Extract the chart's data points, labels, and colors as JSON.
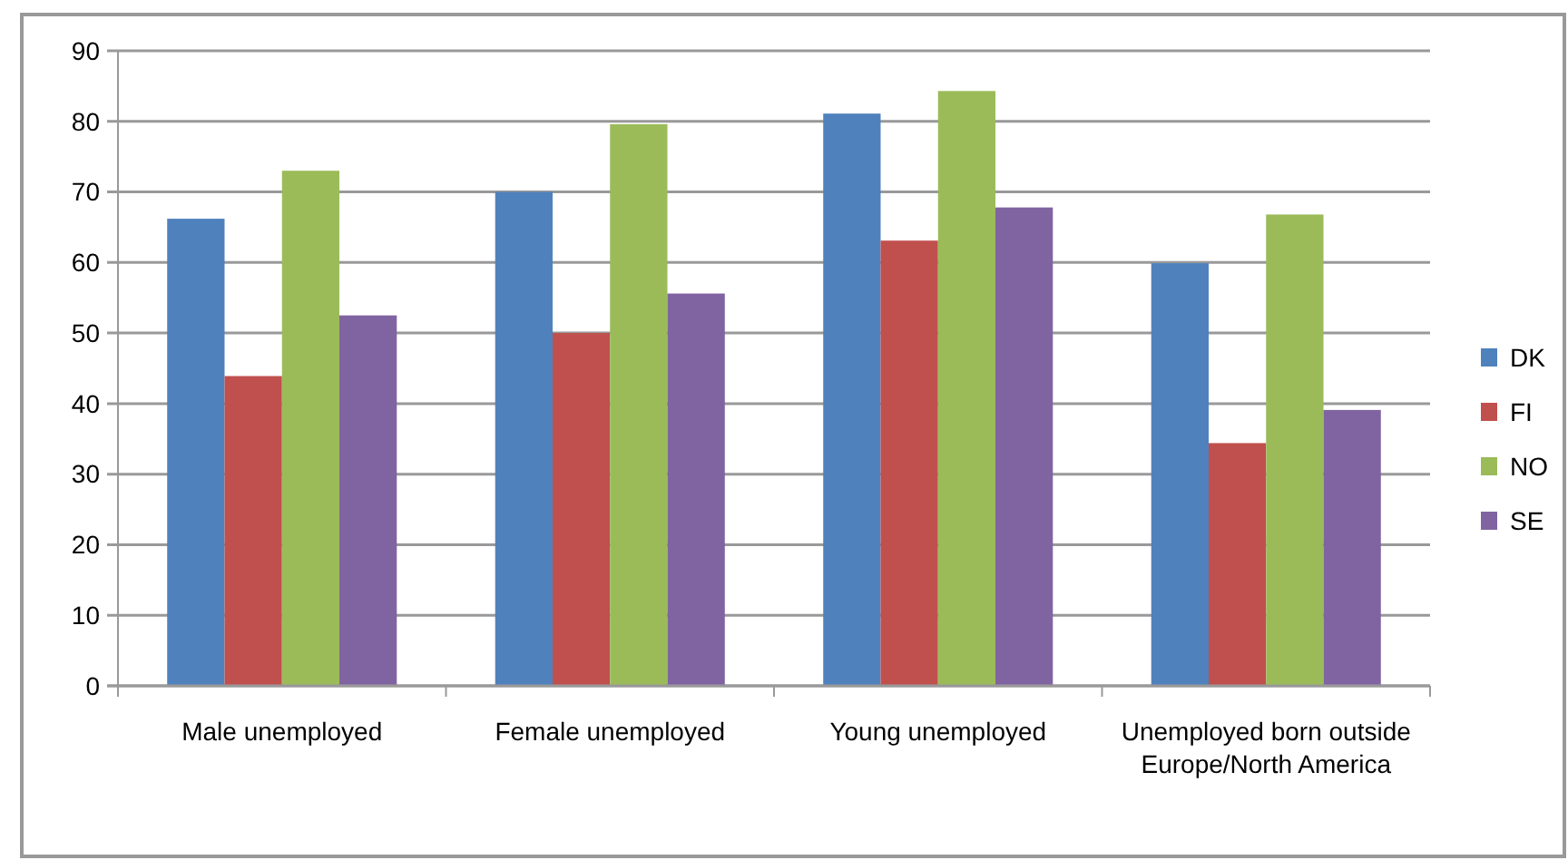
{
  "chart_data": {
    "type": "bar",
    "categories": [
      "Male unemployed",
      "Female unemployed",
      "Young unemployed",
      "Unemployed born outside Europe/North America"
    ],
    "series": [
      {
        "name": "DK",
        "color": "#4f81bd",
        "values": [
          66.2,
          70,
          81.1,
          59.9
        ]
      },
      {
        "name": "FI",
        "color": "#c0504d",
        "values": [
          43.9,
          50,
          63.1,
          34.4
        ]
      },
      {
        "name": "NO",
        "color": "#9bbb59",
        "values": [
          73,
          79.6,
          84.3,
          66.8
        ]
      },
      {
        "name": "SE",
        "color": "#8064a2",
        "values": [
          52.5,
          55.6,
          67.8,
          39.1
        ]
      }
    ],
    "ylim": [
      0,
      90
    ],
    "yticks": [
      0,
      10,
      20,
      30,
      40,
      50,
      60,
      70,
      80,
      90
    ],
    "grid": "y",
    "legend": "right"
  }
}
